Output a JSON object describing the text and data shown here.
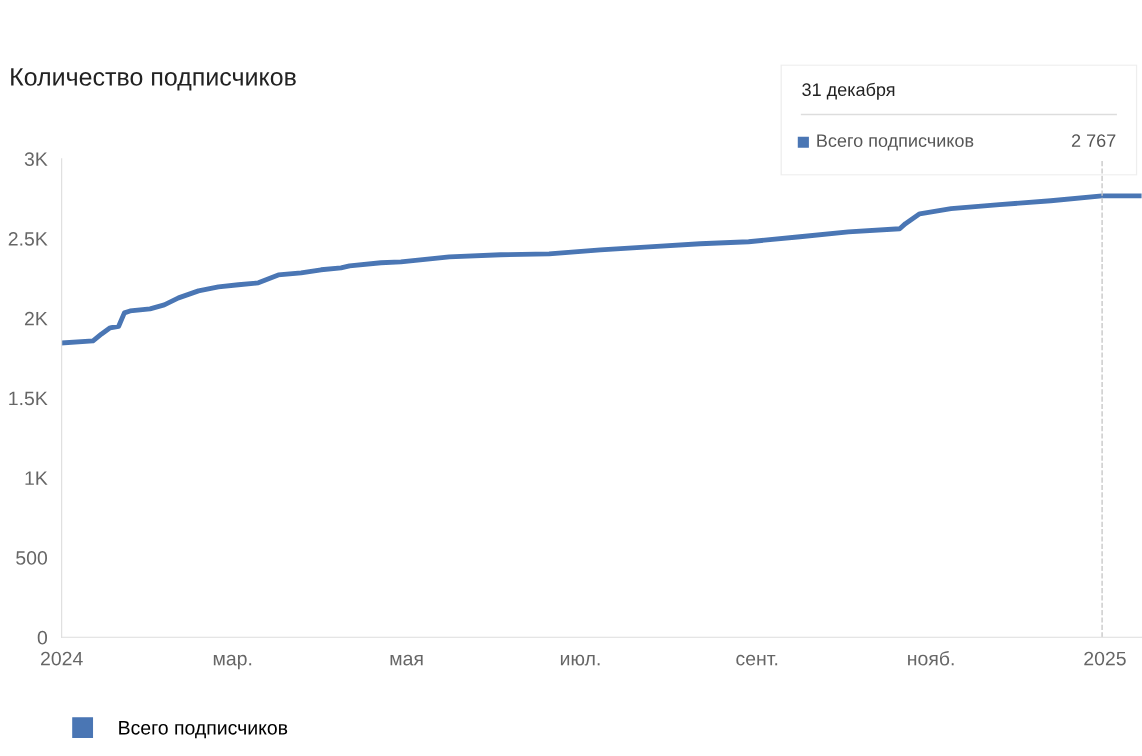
{
  "chart_data": {
    "type": "line",
    "title": "Количество подписчиков",
    "x": [
      "2024-01-01",
      "2024-01-12",
      "2024-01-15",
      "2024-01-18",
      "2024-01-21",
      "2024-01-23",
      "2024-01-25",
      "2024-02-01",
      "2024-02-06",
      "2024-02-11",
      "2024-02-18",
      "2024-02-25",
      "2024-03-03",
      "2024-03-10",
      "2024-03-17",
      "2024-03-25",
      "2024-04-01",
      "2024-04-08",
      "2024-04-11",
      "2024-04-22",
      "2024-04-29",
      "2024-05-16",
      "2024-06-03",
      "2024-06-20",
      "2024-07-08",
      "2024-07-25",
      "2024-08-12",
      "2024-08-29",
      "2024-09-16",
      "2024-10-03",
      "2024-10-21",
      "2024-10-23",
      "2024-10-28",
      "2024-11-08",
      "2024-11-25",
      "2024-12-13",
      "2024-12-31",
      "2025-01-13"
    ],
    "series": [
      {
        "name": "Всего подписчиков",
        "color": "#4a76b4",
        "values": [
          1845,
          1858,
          1902,
          1940,
          1950,
          2034,
          2046,
          2059,
          2084,
          2128,
          2172,
          2197,
          2210,
          2222,
          2272,
          2285,
          2304,
          2316,
          2329,
          2348,
          2354,
          2385,
          2398,
          2404,
          2429,
          2448,
          2467,
          2480,
          2511,
          2542,
          2561,
          2593,
          2655,
          2687,
          2712,
          2737,
          2767,
          2767
        ]
      }
    ],
    "xlim": [
      "2024-01-01",
      "2025-01-14"
    ],
    "xticks": [
      {
        "value": "2024-01-01",
        "label": "2024"
      },
      {
        "value": "2024-03-01",
        "label": "мар."
      },
      {
        "value": "2024-05-01",
        "label": "мая"
      },
      {
        "value": "2024-07-01",
        "label": "июл."
      },
      {
        "value": "2024-09-01",
        "label": "сент."
      },
      {
        "value": "2024-11-01",
        "label": "нояб."
      },
      {
        "value": "2025-01-01",
        "label": "2025"
      }
    ],
    "ylim": [
      0,
      3000
    ],
    "yticks": [
      0,
      500,
      {
        "value": 1000,
        "label": "1K"
      },
      {
        "value": 1500,
        "label": "1.5K"
      },
      {
        "value": 2000,
        "label": "2K"
      },
      {
        "value": 2500,
        "label": "2.5K"
      },
      {
        "value": 3000,
        "label": "3K"
      }
    ],
    "ref_lines": [
      {
        "axis": "x",
        "value": "2024-12-31",
        "color": "#c8c8c8",
        "line_style": "dashed"
      }
    ],
    "annotations": [
      "31 декабря",
      "Всего подписчиков",
      "2 767"
    ],
    "grid": false,
    "legend": "bottom left",
    "marker": "none",
    "line_style": "solid"
  }
}
